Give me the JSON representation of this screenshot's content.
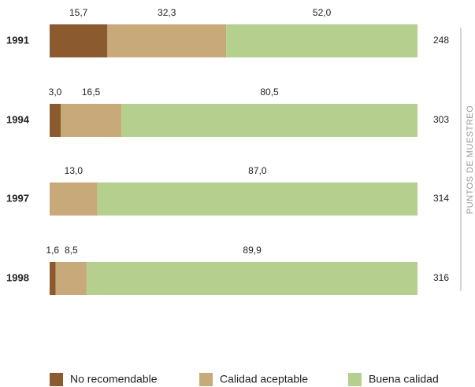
{
  "chart_data": {
    "type": "stacked-bar-horizontal",
    "categories": [
      "1991",
      "1994",
      "1997",
      "1998"
    ],
    "xlim": [
      0,
      100
    ],
    "series": [
      {
        "name": "No recomendable",
        "color": "#8b5a2e",
        "values": [
          15.7,
          3.0,
          null,
          1.6
        ],
        "value_labels": [
          "15,7",
          "3,0",
          null,
          "1,6"
        ]
      },
      {
        "name": "Calidad aceptable",
        "color": "#c8a97a",
        "values": [
          32.3,
          16.5,
          13.0,
          8.5
        ],
        "value_labels": [
          "32,3",
          "16,5",
          "13,0",
          "8,5"
        ]
      },
      {
        "name": "Buena calidad",
        "color": "#b4cf8e",
        "values": [
          52.0,
          80.5,
          87.0,
          89.9
        ],
        "value_labels": [
          "52,0",
          "80,5",
          "87,0",
          "89,9"
        ]
      }
    ],
    "sample_points": {
      "label": "PUNTOS DE MUESTREO",
      "values": [
        248,
        303,
        314,
        316
      ]
    },
    "legend": "bottom"
  }
}
